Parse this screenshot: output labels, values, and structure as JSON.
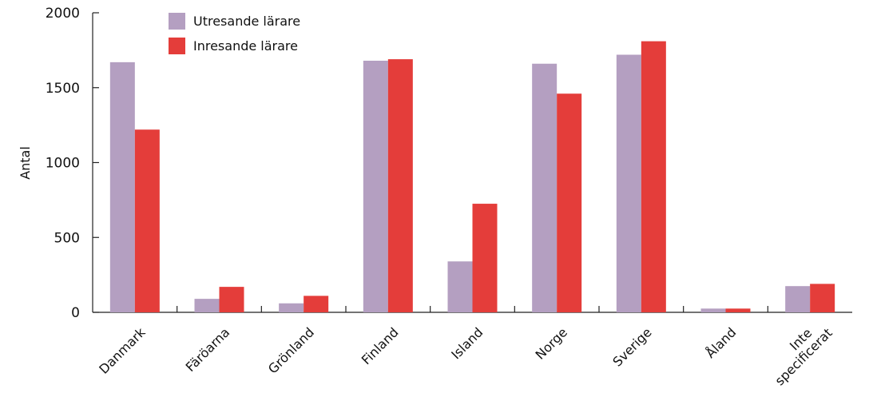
{
  "chart_data": {
    "type": "bar",
    "title": "",
    "xlabel": "",
    "ylabel": "Antal",
    "ylim": [
      0,
      2000
    ],
    "yticks": [
      0,
      500,
      1000,
      1500,
      2000
    ],
    "categories": [
      "Danmark",
      "Färöarna",
      "Grönland",
      "Finland",
      "Island",
      "Norge",
      "Sverige",
      "Åland",
      "Inte specificerat"
    ],
    "series": [
      {
        "name": "Utresande lärare",
        "color": "#b49fc1",
        "values": [
          1670,
          90,
          60,
          1680,
          340,
          1660,
          1720,
          25,
          175
        ]
      },
      {
        "name": "Inresande lärare",
        "color": "#e43d3a",
        "values": [
          1220,
          170,
          110,
          1690,
          725,
          1460,
          1810,
          25,
          190
        ]
      }
    ],
    "legend_position": "top-left",
    "grid": false
  }
}
